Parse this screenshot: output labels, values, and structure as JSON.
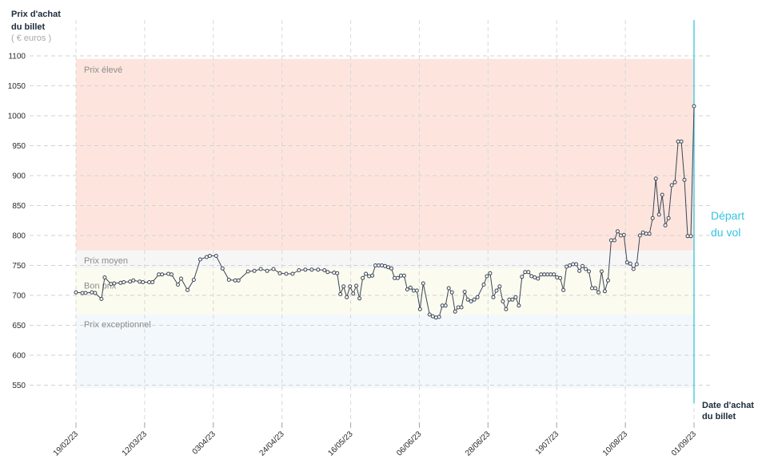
{
  "chart_data": {
    "type": "line",
    "ylabel": {
      "lines": [
        "Prix d'achat",
        "du billet"
      ],
      "unit": "( € euros )"
    },
    "xlabel": {
      "lines": [
        "Date d'achat",
        "du billet"
      ]
    },
    "ylim": [
      480,
      1160
    ],
    "yticks": [
      1100,
      1050,
      1000,
      950,
      900,
      850,
      800,
      750,
      700,
      650,
      600,
      550
    ],
    "xlim": [
      "19/02/23",
      "01/09/23"
    ],
    "xticks": [
      "19/02/23",
      "12/03/23",
      "0304/23",
      "24/04/23",
      "16/05/23",
      "06/06/23",
      "28/06/23",
      "1907/23",
      "10/08/23",
      "01/09/23"
    ],
    "grid": true,
    "bands": [
      {
        "label": "Prix élevé",
        "from": 775,
        "to": 1095,
        "color": "#fde5de"
      },
      {
        "label": "Prix moyen",
        "from": 745,
        "to": 775,
        "color": "#f6f6f6"
      },
      {
        "label": "Bon prix",
        "from": 668,
        "to": 745,
        "color": "#fbfbef"
      },
      {
        "label": "Prix exceptionnel",
        "from": 545,
        "to": 668,
        "color": "#f3f8fc"
      }
    ],
    "event": {
      "date": "01/09/23",
      "label_lines": [
        "Départ",
        "du vol"
      ],
      "color": "#35c4e1"
    },
    "line_color": "#3a4556",
    "x": [
      "19/02/23",
      "21/02/23",
      "22/02/23",
      "24/02/23",
      "25/02/23",
      "27/02/23",
      "28/02/23",
      "02/03/23",
      "03/03/23",
      "05/03/23",
      "06/03/23",
      "08/03/23",
      "09/03/23",
      "11/03/23",
      "12/03/23",
      "14/03/23",
      "15/03/23",
      "17/03/23",
      "18/03/23",
      "20/03/23",
      "21/03/23",
      "23/03/23",
      "24/03/23",
      "26/03/23",
      "28/03/23",
      "30/03/23",
      "01/04/23",
      "02/04/23",
      "04/04/23",
      "06/04/23",
      "08/04/23",
      "10/04/23",
      "11/04/23",
      "14/04/23",
      "16/04/23",
      "18/04/23",
      "20/04/23",
      "22/04/23",
      "24/04/23",
      "26/04/23",
      "28/04/23",
      "30/04/23",
      "02/05/23",
      "04/05/23",
      "06/05/23",
      "08/05/23",
      "09/05/23",
      "11/05/23",
      "12/05/23",
      "13/05/23",
      "14/05/23",
      "15/05/23",
      "16/05/23",
      "17/05/23",
      "18/05/23",
      "19/05/23",
      "20/05/23",
      "21/05/23",
      "22/05/23",
      "23/05/23",
      "24/05/23",
      "25/05/23",
      "26/05/23",
      "27/05/23",
      "28/05/23",
      "29/05/23",
      "30/05/23",
      "31/05/23",
      "01/06/23",
      "02/06/23",
      "03/06/23",
      "04/06/23",
      "05/06/23",
      "06/06/23",
      "07/06/23",
      "08/06/23",
      "10/06/23",
      "11/06/23",
      "12/06/23",
      "13/06/23",
      "14/06/23",
      "15/06/23",
      "16/06/23",
      "17/06/23",
      "18/06/23",
      "19/06/23",
      "20/06/23",
      "21/06/23",
      "22/06/23",
      "23/06/23",
      "24/06/23",
      "25/06/23",
      "27/06/23",
      "28/06/23",
      "29/06/23",
      "30/06/23",
      "01/07/23",
      "02/07/23",
      "03/07/23",
      "04/07/23",
      "05/07/23",
      "06/07/23",
      "07/07/23",
      "08/07/23",
      "09/07/23",
      "10/07/23",
      "11/07/23",
      "12/07/23",
      "13/07/23",
      "14/07/23",
      "15/07/23",
      "16/07/23",
      "17/07/23",
      "18/07/23",
      "19/07/23",
      "20/07/23",
      "21/07/23",
      "22/07/23",
      "23/07/23",
      "24/07/23",
      "25/07/23",
      "26/07/23",
      "27/07/23",
      "28/07/23",
      "29/07/23",
      "30/07/23",
      "31/07/23",
      "01/08/23",
      "02/08/23",
      "03/08/23",
      "04/08/23",
      "05/08/23",
      "06/08/23",
      "07/08/23",
      "08/08/23",
      "09/08/23",
      "10/08/23",
      "11/08/23",
      "12/08/23",
      "13/08/23",
      "14/08/23",
      "15/08/23",
      "16/08/23",
      "17/08/23",
      "18/08/23",
      "19/08/23",
      "20/08/23",
      "21/08/23",
      "22/08/23",
      "23/08/23",
      "24/08/23",
      "25/08/23",
      "26/08/23",
      "27/08/23",
      "28/08/23",
      "29/08/23",
      "30/08/23",
      "31/08/23",
      "01/09/23"
    ],
    "series": [
      {
        "values": [
          705,
          704,
          704,
          705,
          704,
          694,
          730,
          719,
          720,
          721,
          722,
          723,
          725,
          723,
          722,
          722,
          722,
          735,
          735,
          736,
          735,
          718,
          728,
          709,
          726,
          760,
          764,
          766,
          766,
          745,
          726,
          725,
          725,
          740,
          741,
          744,
          741,
          744,
          737,
          736,
          736,
          742,
          743,
          743,
          743,
          742,
          739,
          738,
          737,
          702,
          715,
          697,
          715,
          703,
          716,
          695,
          729,
          736,
          732,
          733,
          750,
          750,
          750,
          749,
          747,
          745,
          729,
          729,
          733,
          733,
          710,
          713,
          708,
          708,
          677,
          720,
          668,
          665,
          663,
          664,
          683,
          683,
          712,
          705,
          673,
          680,
          680,
          706,
          693,
          690,
          693,
          697,
          718,
          732,
          737,
          697,
          708,
          715,
          690,
          677,
          693,
          693,
          697,
          683,
          731,
          739,
          739,
          732,
          730,
          728,
          735,
          735,
          735,
          735,
          735,
          730,
          729,
          709,
          748,
          750,
          752,
          752,
          741,
          749,
          744,
          740,
          712,
          712,
          705,
          740,
          707,
          725,
          792,
          792,
          807,
          800,
          801,
          755,
          753,
          744,
          752,
          800,
          805,
          803,
          803,
          829,
          895,
          835,
          868,
          817,
          829,
          884,
          889,
          957,
          957,
          893,
          799,
          799,
          1016
        ]
      }
    ]
  }
}
